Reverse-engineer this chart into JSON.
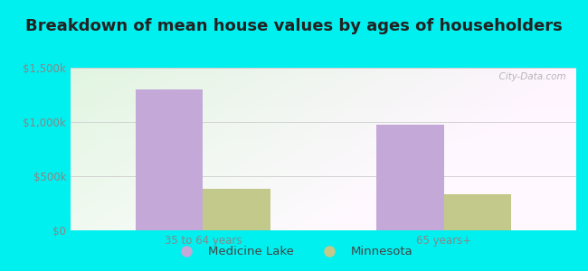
{
  "title": "Breakdown of mean house values by ages of householders",
  "categories": [
    "35 to 64 years",
    "65 years+"
  ],
  "series": {
    "Medicine Lake": [
      1300000,
      975000
    ],
    "Minnesota": [
      380000,
      330000
    ]
  },
  "series_colors": {
    "Medicine Lake": "#c4a8d8",
    "Minnesota": "#c2c98a"
  },
  "ylim": [
    0,
    1500000
  ],
  "yticks": [
    0,
    500000,
    1000000,
    1500000
  ],
  "ytick_labels": [
    "$0",
    "$500k",
    "$1,000k",
    "$1,500k"
  ],
  "background_outer": "#00efef",
  "bar_width": 0.28,
  "watermark": "  City-Data.com",
  "title_fontsize": 13,
  "tick_fontsize": 8.5,
  "legend_fontsize": 9.5,
  "text_color": "#444444",
  "tick_color": "#888888"
}
